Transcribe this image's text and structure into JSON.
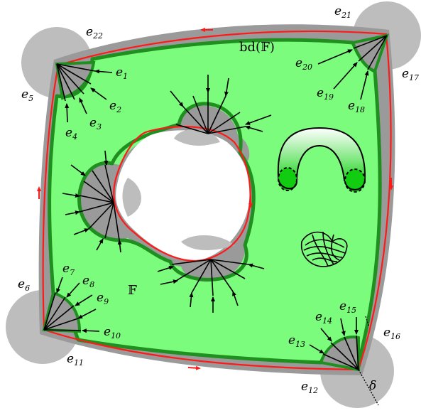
{
  "labels": {
    "outer_boundary": "bd(𝔽)",
    "region": "𝔽",
    "delta": "δ",
    "edges": [
      {
        "letter": "e",
        "sub": "1"
      },
      {
        "letter": "e",
        "sub": "2"
      },
      {
        "letter": "e",
        "sub": "3"
      },
      {
        "letter": "e",
        "sub": "4"
      },
      {
        "letter": "e",
        "sub": "5"
      },
      {
        "letter": "e",
        "sub": "6"
      },
      {
        "letter": "e",
        "sub": "7"
      },
      {
        "letter": "e",
        "sub": "8"
      },
      {
        "letter": "e",
        "sub": "9"
      },
      {
        "letter": "e",
        "sub": "10"
      },
      {
        "letter": "e",
        "sub": "11"
      },
      {
        "letter": "e",
        "sub": "12"
      },
      {
        "letter": "e",
        "sub": "13"
      },
      {
        "letter": "e",
        "sub": "14"
      },
      {
        "letter": "e",
        "sub": "15"
      },
      {
        "letter": "e",
        "sub": "16"
      },
      {
        "letter": "e",
        "sub": "17"
      },
      {
        "letter": "e",
        "sub": "18"
      },
      {
        "letter": "e",
        "sub": "19"
      },
      {
        "letter": "e",
        "sub": "20"
      },
      {
        "letter": "e",
        "sub": "21"
      },
      {
        "letter": "e",
        "sub": "22"
      }
    ]
  },
  "colors": {
    "region_fill": "#7cfc7c",
    "region_border": "#1f8f1f",
    "boundary_band": "#9a9a9a",
    "corner_disk": "#bdbdbd",
    "boundary_curve": "#ff1a1a",
    "arrow": "#000000",
    "surface_fill": "#22dd22"
  }
}
